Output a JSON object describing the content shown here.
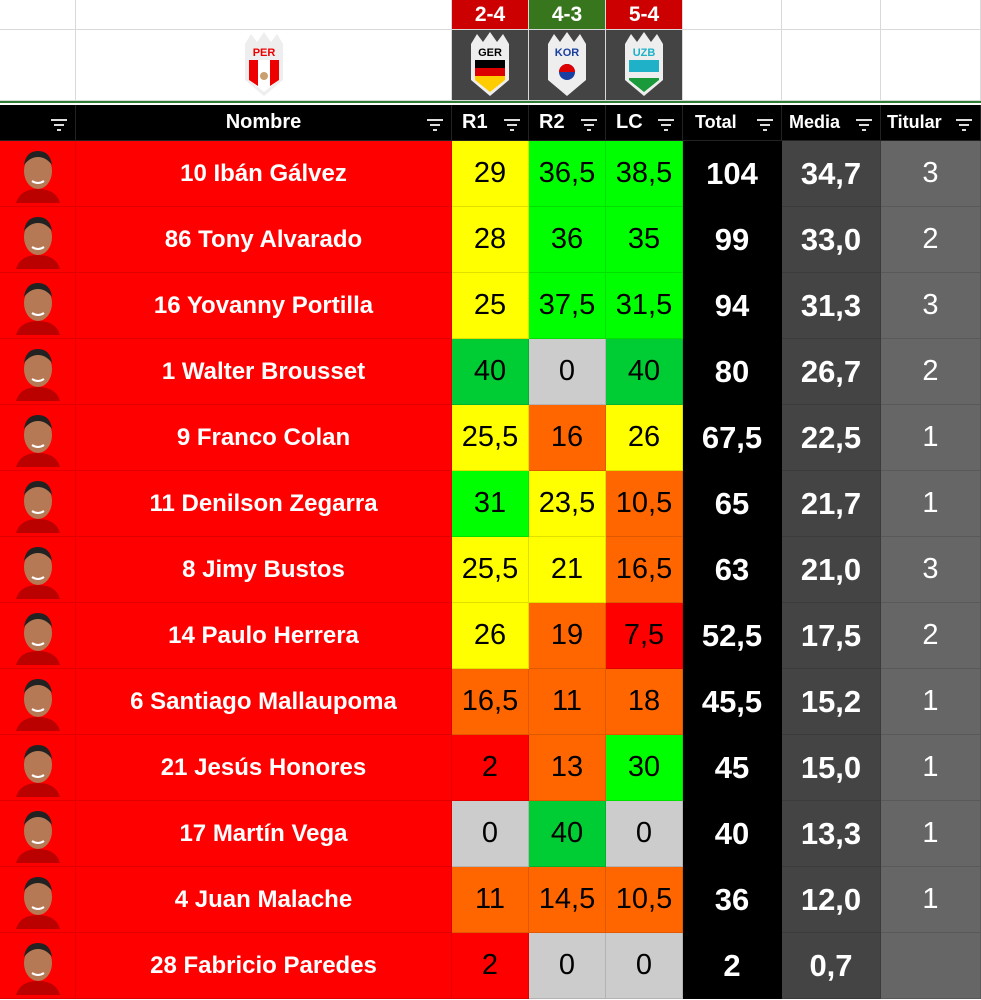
{
  "scores": [
    {
      "text": "2-4",
      "color": "#cc0000"
    },
    {
      "text": "4-3",
      "color": "#38761d"
    },
    {
      "text": "5-4",
      "color": "#cc0000"
    }
  ],
  "team": {
    "code": "PER"
  },
  "opponents": [
    {
      "code": "GER"
    },
    {
      "code": "KOR"
    },
    {
      "code": "UZB"
    }
  ],
  "headers": {
    "nombre": "Nombre",
    "r1": "R1",
    "r2": "R2",
    "lc": "LC",
    "total": "Total",
    "media": "Media",
    "titular": "Titular"
  },
  "colors": {
    "Y": "#ffff00",
    "G": "#00ff00",
    "DG": "#00cc33",
    "O": "#ff6600",
    "R": "#ff0000",
    "GR": "#cccccc"
  },
  "players": [
    {
      "name": "10 Ibán Gálvez",
      "r1": "29",
      "r1c": "Y",
      "r2": "36,5",
      "r2c": "G",
      "lc": "38,5",
      "lcc": "G",
      "total": "104",
      "media": "34,7",
      "titular": "3"
    },
    {
      "name": "86 Tony Alvarado",
      "r1": "28",
      "r1c": "Y",
      "r2": "36",
      "r2c": "G",
      "lc": "35",
      "lcc": "G",
      "total": "99",
      "media": "33,0",
      "titular": "2"
    },
    {
      "name": "16 Yovanny Portilla",
      "r1": "25",
      "r1c": "Y",
      "r2": "37,5",
      "r2c": "G",
      "lc": "31,5",
      "lcc": "G",
      "total": "94",
      "media": "31,3",
      "titular": "3"
    },
    {
      "name": "1 Walter Brousset",
      "r1": "40",
      "r1c": "DG",
      "r2": "0",
      "r2c": "GR",
      "lc": "40",
      "lcc": "DG",
      "total": "80",
      "media": "26,7",
      "titular": "2"
    },
    {
      "name": "9 Franco Colan",
      "r1": "25,5",
      "r1c": "Y",
      "r2": "16",
      "r2c": "O",
      "lc": "26",
      "lcc": "Y",
      "total": "67,5",
      "media": "22,5",
      "titular": "1"
    },
    {
      "name": "11 Denilson Zegarra",
      "r1": "31",
      "r1c": "G",
      "r2": "23,5",
      "r2c": "Y",
      "lc": "10,5",
      "lcc": "O",
      "total": "65",
      "media": "21,7",
      "titular": "1"
    },
    {
      "name": "8 Jimy Bustos",
      "r1": "25,5",
      "r1c": "Y",
      "r2": "21",
      "r2c": "Y",
      "lc": "16,5",
      "lcc": "O",
      "total": "63",
      "media": "21,0",
      "titular": "3"
    },
    {
      "name": "14 Paulo Herrera",
      "r1": "26",
      "r1c": "Y",
      "r2": "19",
      "r2c": "O",
      "lc": "7,5",
      "lcc": "R",
      "total": "52,5",
      "media": "17,5",
      "titular": "2"
    },
    {
      "name": "6 Santiago Mallaupoma",
      "r1": "16,5",
      "r1c": "O",
      "r2": "11",
      "r2c": "O",
      "lc": "18",
      "lcc": "O",
      "total": "45,5",
      "media": "15,2",
      "titular": "1"
    },
    {
      "name": "21 Jesús Honores",
      "r1": "2",
      "r1c": "R",
      "r2": "13",
      "r2c": "O",
      "lc": "30",
      "lcc": "G",
      "total": "45",
      "media": "15,0",
      "titular": "1"
    },
    {
      "name": "17 Martín Vega",
      "r1": "0",
      "r1c": "GR",
      "r2": "40",
      "r2c": "DG",
      "lc": "0",
      "lcc": "GR",
      "total": "40",
      "media": "13,3",
      "titular": "1"
    },
    {
      "name": "4 Juan Malache",
      "r1": "11",
      "r1c": "O",
      "r2": "14,5",
      "r2c": "O",
      "lc": "10,5",
      "lcc": "O",
      "total": "36",
      "media": "12,0",
      "titular": "1"
    },
    {
      "name": "28 Fabricio Paredes",
      "r1": "2",
      "r1c": "R",
      "r2": "0",
      "r2c": "GR",
      "lc": "0",
      "lcc": "GR",
      "total": "2",
      "media": "0,7",
      "titular": ""
    }
  ]
}
